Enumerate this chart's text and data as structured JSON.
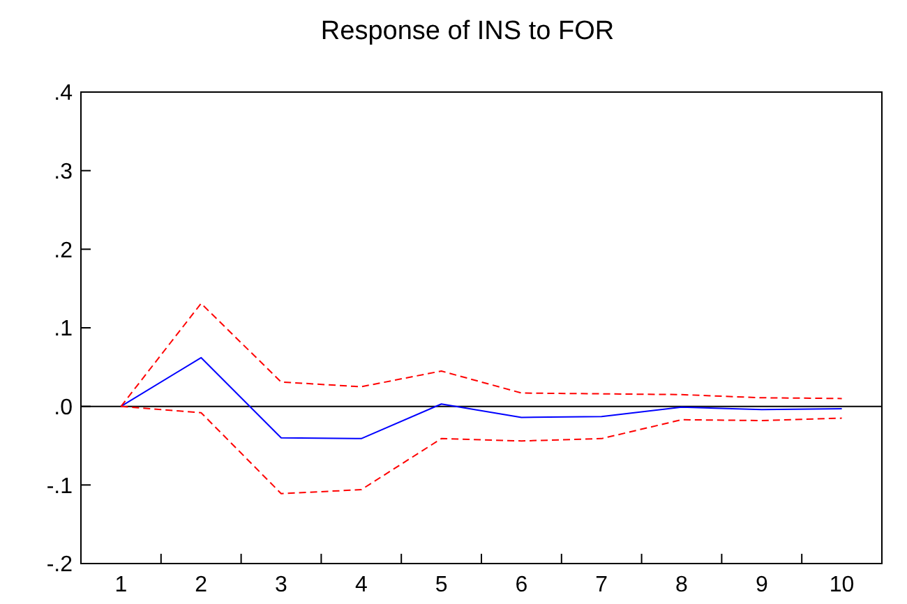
{
  "chart_data": {
    "type": "line",
    "title": "Response of INS to FOR",
    "categories": [
      "1",
      "2",
      "3",
      "4",
      "5",
      "6",
      "7",
      "8",
      "9",
      "10"
    ],
    "ylim": [
      -0.2,
      0.4
    ],
    "yticks": [
      {
        "value": -0.2,
        "label": "-.2"
      },
      {
        "value": -0.1,
        "label": "-.1"
      },
      {
        "value": 0,
        "label": ".0"
      },
      {
        "value": 0.1,
        "label": ".1"
      },
      {
        "value": 0.2,
        "label": ".2"
      },
      {
        "value": 0.3,
        "label": ".3"
      },
      {
        "value": 0.4,
        "label": ".4"
      }
    ],
    "grid": false,
    "ref_lines": [
      {
        "axis": "y",
        "value": 0,
        "color": "#000000"
      }
    ],
    "series": [
      {
        "color": "#0000ff",
        "line_style": "solid",
        "values": [
          0,
          0.062,
          -0.04,
          -0.041,
          0.003,
          -0.014,
          -0.013,
          -0.001,
          -0.004,
          -0.003
        ]
      },
      {
        "color": "#ff0000",
        "line_style": "dashed",
        "values": [
          0,
          0.131,
          0.031,
          0.025,
          0.045,
          0.017,
          0.016,
          0.015,
          0.011,
          0.01
        ]
      },
      {
        "color": "#ff0000",
        "line_style": "dashed",
        "values": [
          0,
          -0.008,
          -0.111,
          -0.106,
          -0.041,
          -0.044,
          -0.041,
          -0.017,
          -0.018,
          -0.015
        ]
      }
    ]
  }
}
